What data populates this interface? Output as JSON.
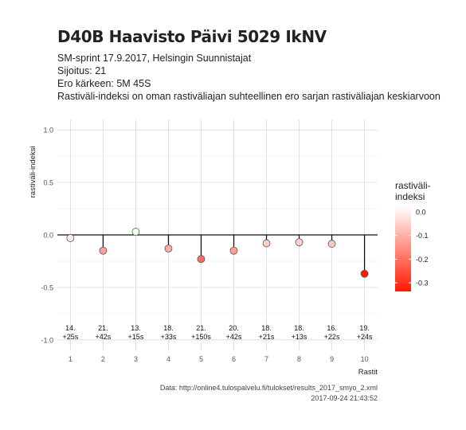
{
  "header": {
    "title": "D40B Haavisto Päivi 5029 IkNV",
    "line1": "SM-sprint 17.9.2017, Helsingin Suunnistajat",
    "line2": "Sijoitus: 21",
    "line3": "Ero kärkeen: 5M 45S",
    "line4": "Rastiväli-indeksi on oman rastiväliajan suhteellinen ero sarjan rastiväliajan keskiarvoon"
  },
  "caption": {
    "source": "Data: http://online4.tulospalvelu.fi/tulokset/results_2017_smyo_2.xml",
    "timestamp": "2017-09-24 21:43:52"
  },
  "legend": {
    "title_line1": "rastiväli-",
    "title_line2": "indeksi",
    "ticks": [
      "0.0",
      "-0.1",
      "-0.2",
      "-0.3"
    ],
    "color_high": "#ffffff",
    "color_low": "#ff1a00"
  },
  "chart_data": {
    "type": "scatter",
    "xlabel": "Rastit",
    "ylabel": "rastiväli-indeksi",
    "x": [
      1,
      2,
      3,
      4,
      5,
      6,
      7,
      8,
      9,
      10
    ],
    "y": [
      -0.03,
      -0.15,
      0.03,
      -0.13,
      -0.23,
      -0.15,
      -0.08,
      -0.07,
      -0.085,
      -0.37
    ],
    "ylim": [
      -1.0,
      1.0
    ],
    "yticks": [
      "1.0",
      "0.5",
      "0.0",
      "-0.5",
      "-1.0"
    ],
    "xticks": [
      "1",
      "2",
      "3",
      "4",
      "5",
      "6",
      "7",
      "8",
      "9",
      "10"
    ],
    "annotations_rank": [
      "14.",
      "21.",
      "13.",
      "18.",
      "21.",
      "20.",
      "18.",
      "18.",
      "16.",
      "19."
    ],
    "annotations_diff": [
      "+25s",
      "+42s",
      "+15s",
      "+33s",
      "+150s",
      "+42s",
      "+21s",
      "+13s",
      "+22s",
      "+24s"
    ],
    "grid": true,
    "legend": "right"
  }
}
